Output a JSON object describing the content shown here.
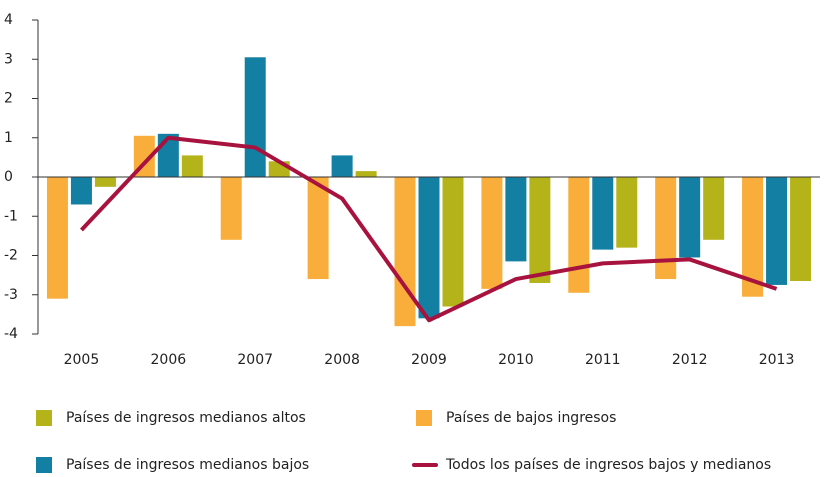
{
  "chart_data": {
    "type": "bar",
    "categories": [
      "2005",
      "2006",
      "2007",
      "2008",
      "2009",
      "2010",
      "2011",
      "2012",
      "2013"
    ],
    "series": [
      {
        "name": "Países de bajos ingresos",
        "color": "#f9ae3b",
        "values": [
          -3.1,
          1.05,
          -1.6,
          -2.6,
          -3.8,
          -2.85,
          -2.95,
          -2.6,
          -3.05
        ]
      },
      {
        "name": "Países de ingresos medianos bajos",
        "color": "#137fa2",
        "values": [
          -0.7,
          1.1,
          3.05,
          0.55,
          -3.6,
          -2.15,
          -1.85,
          -2.05,
          -2.75
        ]
      },
      {
        "name": "Países de ingresos medianos altos",
        "color": "#b5b31a",
        "values": [
          -0.25,
          0.55,
          0.4,
          0.15,
          -3.3,
          -2.7,
          -1.8,
          -1.6,
          -2.65
        ]
      },
      {
        "name": "Todos los países de ingresos bajos y medianos",
        "color": "#a8123e",
        "type": "line",
        "values": [
          -1.35,
          1.0,
          0.75,
          -0.55,
          -3.65,
          -2.6,
          -2.2,
          -2.1,
          -2.85
        ]
      }
    ],
    "ylim": [
      -4,
      4
    ],
    "yticks": [
      -4,
      -3,
      -2,
      -1,
      0,
      1,
      2,
      3,
      4
    ],
    "grid": false
  }
}
